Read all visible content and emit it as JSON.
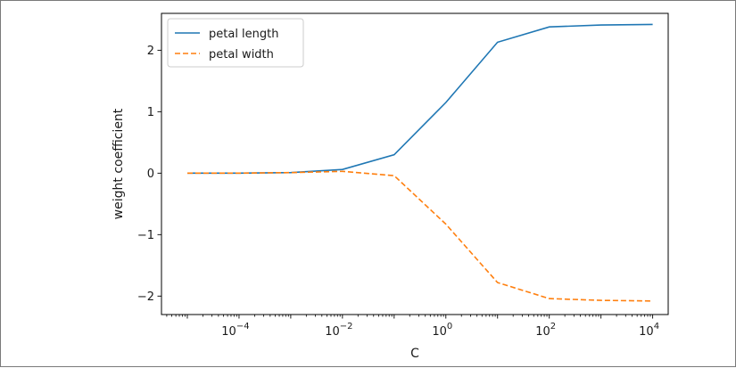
{
  "chart_data": {
    "type": "line",
    "xlabel": "C",
    "ylabel": "weight coefficient",
    "xscale": "log",
    "xlim_exp": [
      -5.5,
      4.3
    ],
    "ylim": [
      -2.3,
      2.6
    ],
    "x_ticks": [
      {
        "base": "10",
        "exp": "−4",
        "value": -4
      },
      {
        "base": "10",
        "exp": "−2",
        "value": -2
      },
      {
        "base": "10",
        "exp": "0",
        "value": 0
      },
      {
        "base": "10",
        "exp": "2",
        "value": 2
      },
      {
        "base": "10",
        "exp": "4",
        "value": 4
      }
    ],
    "y_ticks": [
      {
        "label": "2",
        "value": 2
      },
      {
        "label": "1",
        "value": 1
      },
      {
        "label": "0",
        "value": 0
      },
      {
        "label": "−1",
        "value": -1
      },
      {
        "label": "−2",
        "value": -2
      }
    ],
    "x": [
      1e-05,
      0.0001,
      0.001,
      0.01,
      0.1,
      1,
      10,
      100,
      1000,
      10000
    ],
    "series": [
      {
        "name": "petal length",
        "color": "#1f77b4",
        "dash": "solid",
        "values": [
          0.0,
          0.0,
          0.01,
          0.06,
          0.3,
          1.15,
          2.13,
          2.38,
          2.41,
          2.42
        ]
      },
      {
        "name": "petal width",
        "color": "#ff7f0e",
        "dash": "dashed",
        "values": [
          0.0,
          0.0,
          0.01,
          0.03,
          -0.04,
          -0.83,
          -1.78,
          -2.04,
          -2.07,
          -2.08
        ]
      }
    ],
    "legend_position": "upper-left",
    "grid": false
  }
}
